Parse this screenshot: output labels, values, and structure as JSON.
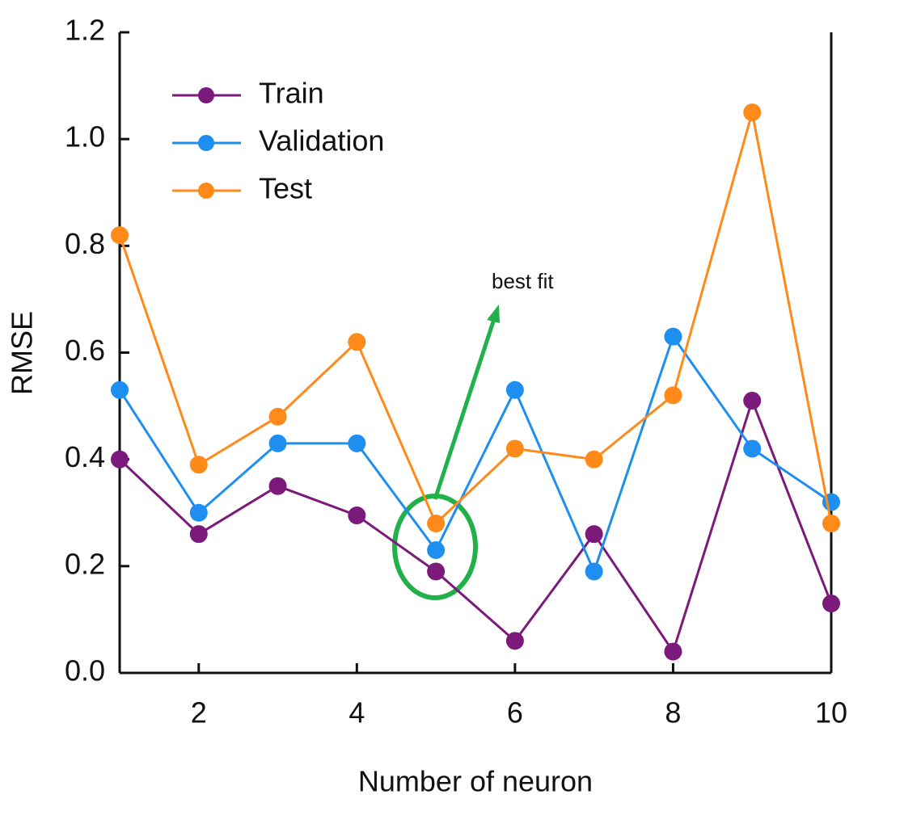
{
  "chart_data": {
    "type": "line",
    "x_label": "Number of neuron",
    "y_label": "RMSE",
    "annotation": "best fit",
    "x": [
      1,
      2,
      3,
      4,
      5,
      6,
      7,
      8,
      9,
      10
    ],
    "series": [
      {
        "name": "Train",
        "color": "#7b1a7b",
        "values": [
          0.4,
          0.26,
          0.35,
          0.295,
          0.19,
          0.06,
          0.26,
          0.04,
          0.51,
          0.13
        ]
      },
      {
        "name": "Validation",
        "color": "#1e8ff0",
        "values": [
          0.53,
          0.3,
          0.43,
          0.43,
          0.23,
          0.53,
          0.19,
          0.63,
          0.42,
          0.32
        ]
      },
      {
        "name": "Test",
        "color": "#ff8a1a",
        "values": [
          0.82,
          0.39,
          0.48,
          0.62,
          0.28,
          0.42,
          0.4,
          0.52,
          1.05,
          0.28
        ]
      }
    ],
    "xlim": [
      1,
      10
    ],
    "xticks": [
      2,
      4,
      6,
      8,
      10
    ],
    "ylim": [
      0,
      1.2
    ],
    "yticks": [
      {
        "value": 0,
        "label": "0.0"
      },
      0.2,
      0.4,
      0.6,
      0.8,
      {
        "value": 1,
        "label": "1.0"
      },
      1.2
    ],
    "legend": "upper-left",
    "grid": false
  }
}
